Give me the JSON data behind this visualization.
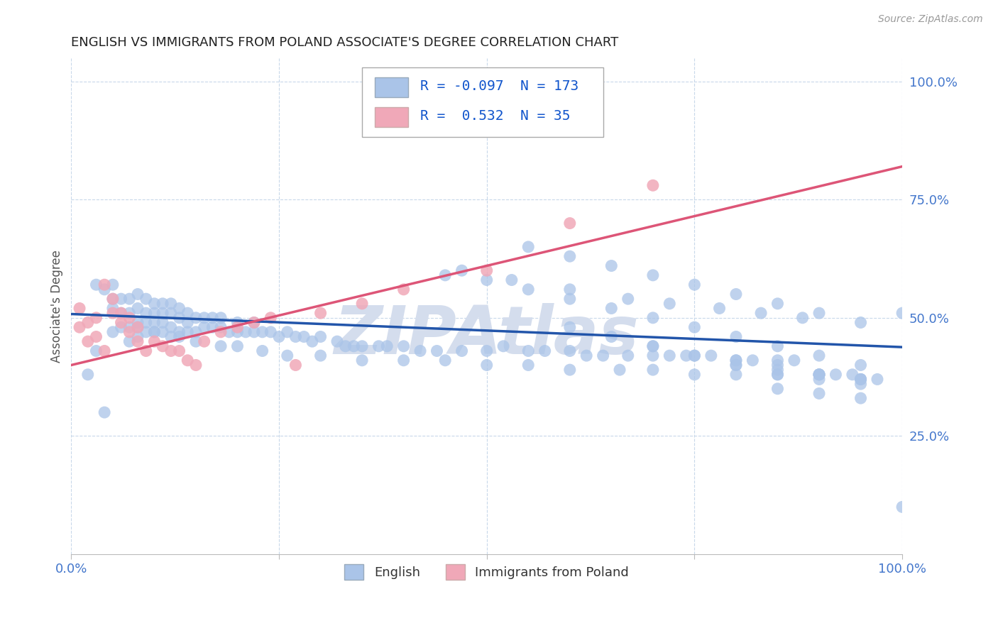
{
  "title": "ENGLISH VS IMMIGRANTS FROM POLAND ASSOCIATE'S DEGREE CORRELATION CHART",
  "source": "Source: ZipAtlas.com",
  "ylabel": "Associate's Degree",
  "english_R": -0.097,
  "english_N": 173,
  "poland_R": 0.532,
  "poland_N": 35,
  "english_color": "#aac4e8",
  "poland_color": "#f0a8b8",
  "english_line_color": "#2255aa",
  "poland_line_color": "#dd5577",
  "watermark": "ZIPAtlas",
  "watermark_color": "#d4dded",
  "english_scatter_x": [
    0.02,
    0.03,
    0.04,
    0.04,
    0.05,
    0.05,
    0.05,
    0.06,
    0.06,
    0.06,
    0.07,
    0.07,
    0.07,
    0.07,
    0.08,
    0.08,
    0.08,
    0.08,
    0.09,
    0.09,
    0.09,
    0.09,
    0.1,
    0.1,
    0.1,
    0.1,
    0.11,
    0.11,
    0.11,
    0.11,
    0.12,
    0.12,
    0.12,
    0.12,
    0.13,
    0.13,
    0.13,
    0.14,
    0.14,
    0.14,
    0.15,
    0.15,
    0.16,
    0.16,
    0.17,
    0.17,
    0.18,
    0.18,
    0.19,
    0.2,
    0.2,
    0.21,
    0.22,
    0.22,
    0.23,
    0.24,
    0.25,
    0.26,
    0.27,
    0.28,
    0.29,
    0.3,
    0.32,
    0.33,
    0.34,
    0.35,
    0.37,
    0.38,
    0.4,
    0.42,
    0.44,
    0.45,
    0.47,
    0.5,
    0.52,
    0.55,
    0.57,
    0.6,
    0.62,
    0.64,
    0.67,
    0.7,
    0.72,
    0.74,
    0.77,
    0.8,
    0.82,
    0.85,
    0.87,
    0.9,
    0.92,
    0.94,
    0.97,
    1.0,
    0.03,
    0.05,
    0.08,
    0.1,
    0.13,
    0.15,
    0.18,
    0.2,
    0.23,
    0.26,
    0.3,
    0.35,
    0.4,
    0.45,
    0.5,
    0.55,
    0.6,
    0.66,
    0.7,
    0.75,
    0.8,
    0.85,
    0.9,
    0.95,
    0.47,
    0.53,
    0.6,
    0.67,
    0.72,
    0.78,
    0.83,
    0.88,
    0.55,
    0.6,
    0.65,
    0.7,
    0.75,
    0.8,
    0.85,
    0.9,
    0.95,
    0.5,
    0.55,
    0.6,
    0.65,
    0.7,
    0.75,
    0.8,
    0.85,
    0.9,
    0.95,
    0.6,
    0.65,
    0.7,
    0.75,
    0.8,
    0.85,
    0.9,
    0.95,
    0.7,
    0.75,
    0.8,
    0.85,
    0.9,
    0.95,
    0.8,
    0.85,
    0.9,
    0.95,
    0.85,
    0.9,
    0.95,
    1.0
  ],
  "english_scatter_y": [
    0.38,
    0.43,
    0.3,
    0.56,
    0.47,
    0.52,
    0.57,
    0.48,
    0.51,
    0.54,
    0.45,
    0.48,
    0.51,
    0.54,
    0.46,
    0.49,
    0.52,
    0.55,
    0.47,
    0.49,
    0.51,
    0.54,
    0.47,
    0.49,
    0.51,
    0.53,
    0.47,
    0.49,
    0.51,
    0.53,
    0.46,
    0.48,
    0.51,
    0.53,
    0.47,
    0.5,
    0.52,
    0.47,
    0.49,
    0.51,
    0.47,
    0.5,
    0.48,
    0.5,
    0.48,
    0.5,
    0.48,
    0.5,
    0.47,
    0.47,
    0.49,
    0.47,
    0.47,
    0.49,
    0.47,
    0.47,
    0.46,
    0.47,
    0.46,
    0.46,
    0.45,
    0.46,
    0.45,
    0.44,
    0.44,
    0.44,
    0.44,
    0.44,
    0.44,
    0.43,
    0.43,
    0.59,
    0.43,
    0.43,
    0.44,
    0.43,
    0.43,
    0.43,
    0.42,
    0.42,
    0.42,
    0.42,
    0.42,
    0.42,
    0.42,
    0.41,
    0.41,
    0.41,
    0.41,
    0.38,
    0.38,
    0.38,
    0.37,
    0.51,
    0.57,
    0.54,
    0.48,
    0.47,
    0.46,
    0.45,
    0.44,
    0.44,
    0.43,
    0.42,
    0.42,
    0.41,
    0.41,
    0.41,
    0.4,
    0.4,
    0.39,
    0.39,
    0.39,
    0.38,
    0.38,
    0.38,
    0.38,
    0.37,
    0.6,
    0.58,
    0.56,
    0.54,
    0.53,
    0.52,
    0.51,
    0.5,
    0.65,
    0.63,
    0.61,
    0.59,
    0.57,
    0.55,
    0.53,
    0.51,
    0.49,
    0.58,
    0.56,
    0.54,
    0.52,
    0.5,
    0.48,
    0.46,
    0.44,
    0.42,
    0.4,
    0.48,
    0.46,
    0.44,
    0.42,
    0.4,
    0.39,
    0.38,
    0.37,
    0.44,
    0.42,
    0.41,
    0.4,
    0.38,
    0.37,
    0.4,
    0.38,
    0.37,
    0.36,
    0.35,
    0.34,
    0.33,
    0.1
  ],
  "poland_scatter_x": [
    0.01,
    0.01,
    0.02,
    0.02,
    0.03,
    0.03,
    0.04,
    0.04,
    0.05,
    0.05,
    0.06,
    0.06,
    0.07,
    0.07,
    0.08,
    0.08,
    0.09,
    0.1,
    0.11,
    0.12,
    0.13,
    0.14,
    0.15,
    0.16,
    0.18,
    0.2,
    0.22,
    0.24,
    0.27,
    0.3,
    0.35,
    0.4,
    0.5,
    0.6,
    0.7
  ],
  "poland_scatter_y": [
    0.48,
    0.52,
    0.45,
    0.49,
    0.46,
    0.5,
    0.43,
    0.57,
    0.51,
    0.54,
    0.49,
    0.51,
    0.47,
    0.5,
    0.45,
    0.48,
    0.43,
    0.45,
    0.44,
    0.43,
    0.43,
    0.41,
    0.4,
    0.45,
    0.47,
    0.48,
    0.49,
    0.5,
    0.4,
    0.51,
    0.53,
    0.56,
    0.6,
    0.7,
    0.78
  ],
  "english_trend_x": [
    0.0,
    1.0
  ],
  "english_trend_y": [
    0.508,
    0.438
  ],
  "poland_trend_x": [
    0.0,
    1.0
  ],
  "poland_trend_y": [
    0.4,
    0.82
  ],
  "xlim": [
    0.0,
    1.0
  ],
  "ylim": [
    0.0,
    1.05
  ],
  "grid_color": "#c8d8ea",
  "background_color": "#ffffff",
  "legend_color": "#1155cc",
  "tick_color": "#4477cc"
}
